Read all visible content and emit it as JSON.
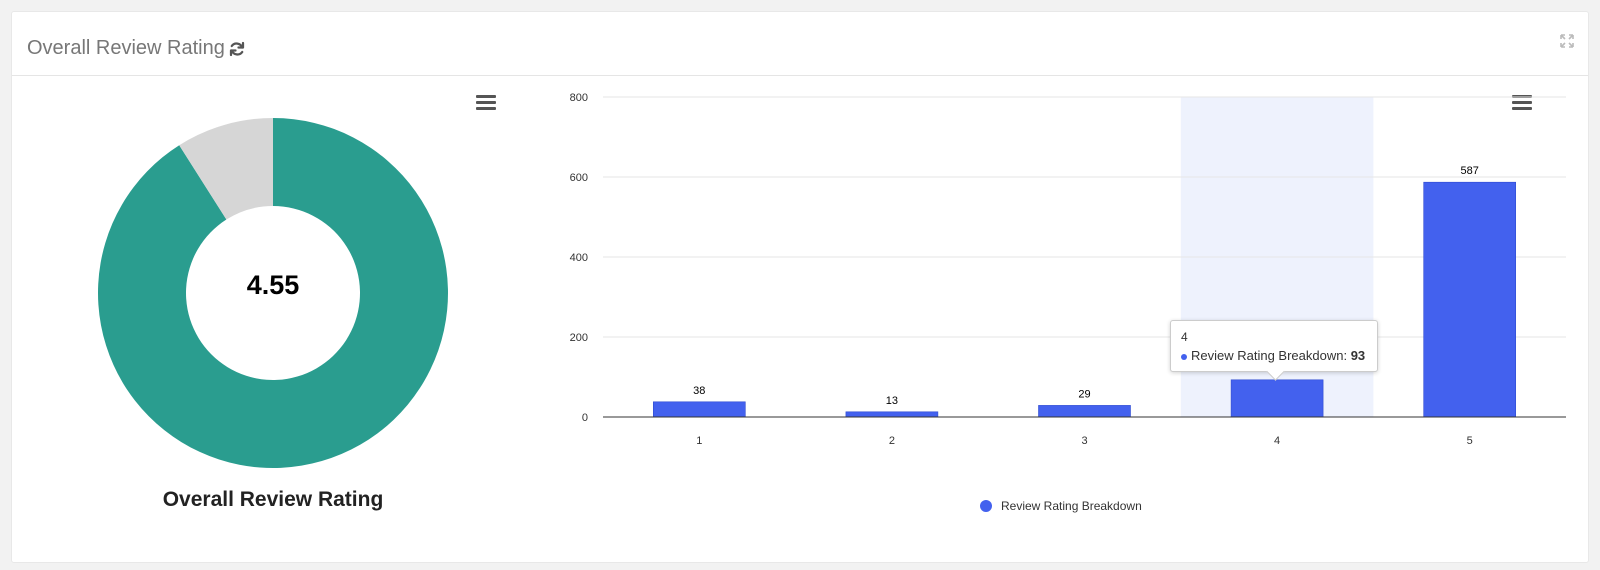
{
  "panel": {
    "title": "Overall Review Rating"
  },
  "icons": {
    "refresh": "refresh-icon",
    "expand": "expand-icon",
    "menu": "hamburger-menu-icon"
  },
  "colors": {
    "donut_fill": "#2a9d8f",
    "donut_remainder": "#d6d6d6",
    "bar": "#4361ee",
    "highlight_band": "#eef2fd"
  },
  "chart_data": [
    {
      "type": "pie",
      "variant": "donut",
      "title": "Overall Review Rating",
      "center_label": "4.55",
      "value": 4.55,
      "max": 5
    },
    {
      "type": "bar",
      "categories": [
        "1",
        "2",
        "3",
        "4",
        "5"
      ],
      "series": [
        {
          "name": "Review Rating Breakdown",
          "values": [
            38,
            13,
            29,
            93,
            587
          ]
        }
      ],
      "ylim": [
        0,
        800
      ],
      "yticks": [
        0,
        200,
        400,
        600,
        800
      ],
      "grid": true,
      "legend": "bottom-center",
      "data_labels": true,
      "tooltip": {
        "category": "4",
        "series": "Review Rating Breakdown",
        "value": "93"
      }
    }
  ]
}
